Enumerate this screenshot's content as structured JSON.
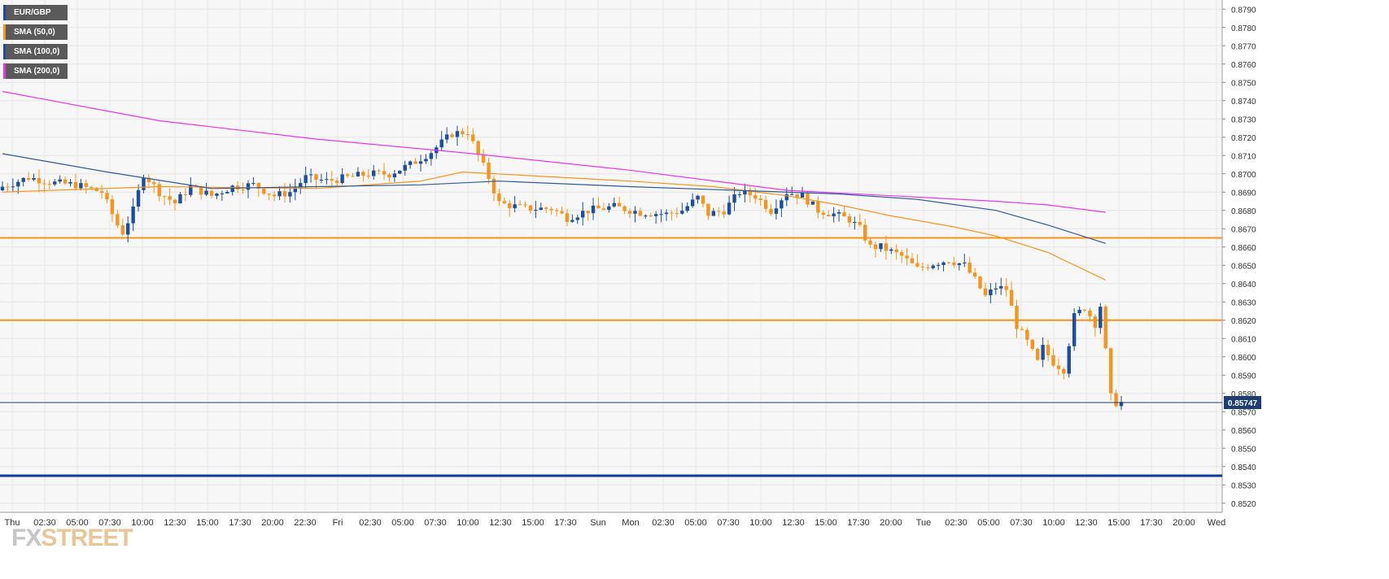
{
  "symbol": "EUR/GBP",
  "logo": {
    "part1": "FX",
    "part2": "STREET"
  },
  "legend": [
    {
      "label": "EUR/GBP",
      "color": "#1e4aa0"
    },
    {
      "label": "SMA (50,0)",
      "color": "#f7941d"
    },
    {
      "label": "SMA (100,0)",
      "color": "#1e4aa0"
    },
    {
      "label": "SMA (200,0)",
      "color": "#e040e0"
    }
  ],
  "colors": {
    "up": "#1a4fa0",
    "down": "#f7941d",
    "hline": "#f7941d",
    "support": "#0a3aa0",
    "sma50": "#f7941d",
    "sma100": "#2f5a9a",
    "sma200": "#e838e8",
    "grid": "#e6e6e6",
    "axis_text": "#333333"
  },
  "chart_data": {
    "type": "candlestick",
    "ylim": [
      0.8515,
      0.8795
    ],
    "y_ticks": [
      "0.8790",
      "0.8780",
      "0.8770",
      "0.8760",
      "0.8750",
      "0.8740",
      "0.8730",
      "0.8720",
      "0.8710",
      "0.8700",
      "0.8690",
      "0.8680",
      "0.8670",
      "0.8660",
      "0.8650",
      "0.8640",
      "0.8630",
      "0.8620",
      "0.8610",
      "0.8600",
      "0.8590",
      "0.8580",
      "0.8570",
      "0.8560",
      "0.8550",
      "0.8540",
      "0.8530",
      "0.8520"
    ],
    "x_ticks": [
      "Thu",
      "02:30",
      "05:00",
      "07:30",
      "10:00",
      "12:30",
      "15:00",
      "17:30",
      "20:00",
      "22:30",
      "Fri",
      "02:30",
      "05:00",
      "07:30",
      "10:00",
      "12:30",
      "15:00",
      "17:30",
      "Sun",
      "Mon",
      "02:30",
      "05:00",
      "07:30",
      "10:00",
      "12:30",
      "15:00",
      "17:30",
      "20:00",
      "Tue",
      "02:30",
      "05:00",
      "07:30",
      "10:00",
      "12:30",
      "15:00",
      "17:30",
      "20:00",
      "Wed"
    ],
    "horizontal_levels": [
      0.8665,
      0.862,
      0.8535
    ],
    "current_price": 0.8575,
    "current_price_label": "0.85747",
    "anchors": [
      [
        0,
        0.8693
      ],
      [
        5,
        0.8698
      ],
      [
        10,
        0.8695
      ],
      [
        14,
        0.8694
      ],
      [
        19,
        0.869
      ],
      [
        22,
        0.8672
      ],
      [
        23,
        0.8668
      ],
      [
        25,
        0.868
      ],
      [
        27,
        0.87
      ],
      [
        30,
        0.869
      ],
      [
        33,
        0.8684
      ],
      [
        36,
        0.8693
      ],
      [
        40,
        0.8688
      ],
      [
        44,
        0.8693
      ],
      [
        48,
        0.8694
      ],
      [
        52,
        0.8688
      ],
      [
        55,
        0.869
      ],
      [
        58,
        0.8698
      ],
      [
        62,
        0.8696
      ],
      [
        66,
        0.8698
      ],
      [
        70,
        0.87
      ],
      [
        74,
        0.87
      ],
      [
        78,
        0.8705
      ],
      [
        82,
        0.8712
      ],
      [
        86,
        0.8722
      ],
      [
        89,
        0.8723
      ],
      [
        91,
        0.871
      ],
      [
        93,
        0.8698
      ],
      [
        95,
        0.8684
      ],
      [
        100,
        0.8681
      ],
      [
        105,
        0.8681
      ],
      [
        108,
        0.8676
      ],
      [
        112,
        0.868
      ],
      [
        117,
        0.8682
      ],
      [
        122,
        0.8679
      ],
      [
        127,
        0.8678
      ],
      [
        130,
        0.868
      ],
      [
        133,
        0.8687
      ],
      [
        135,
        0.8678
      ],
      [
        138,
        0.868
      ],
      [
        141,
        0.869
      ],
      [
        144,
        0.8688
      ],
      [
        147,
        0.868
      ],
      [
        150,
        0.869
      ],
      [
        153,
        0.8688
      ],
      [
        156,
        0.868
      ],
      [
        159,
        0.8678
      ],
      [
        162,
        0.8675
      ],
      [
        164,
        0.867
      ],
      [
        166,
        0.866
      ],
      [
        168,
        0.866
      ],
      [
        172,
        0.8655
      ],
      [
        175,
        0.8648
      ],
      [
        178,
        0.8651
      ],
      [
        181,
        0.8653
      ],
      [
        184,
        0.865
      ],
      [
        186,
        0.8642
      ],
      [
        188,
        0.8633
      ],
      [
        190,
        0.8638
      ],
      [
        192,
        0.8637
      ],
      [
        194,
        0.8617
      ],
      [
        196,
        0.8608
      ],
      [
        198,
        0.8597
      ],
      [
        199,
        0.8605
      ],
      [
        201,
        0.8597
      ],
      [
        203,
        0.8593
      ],
      [
        205,
        0.8622
      ],
      [
        207,
        0.8627
      ],
      [
        209,
        0.8618
      ],
      [
        210,
        0.8628
      ],
      [
        212,
        0.8578
      ],
      [
        213,
        0.8575
      ],
      [
        214,
        0.8575
      ]
    ],
    "series": [
      {
        "name": "SMA (50,0)",
        "points": [
          [
            0,
            0.869
          ],
          [
            30,
            0.8693
          ],
          [
            60,
            0.8692
          ],
          [
            80,
            0.8696
          ],
          [
            88,
            0.8701
          ],
          [
            120,
            0.8696
          ],
          [
            136,
            0.8693
          ],
          [
            150,
            0.8688
          ],
          [
            160,
            0.8683
          ],
          [
            170,
            0.8677
          ],
          [
            182,
            0.8671
          ],
          [
            190,
            0.8666
          ],
          [
            200,
            0.8657
          ],
          [
            211,
            0.8642
          ]
        ]
      },
      {
        "name": "SMA (100,0)",
        "points": [
          [
            0,
            0.8711
          ],
          [
            20,
            0.8701
          ],
          [
            40,
            0.8692
          ],
          [
            60,
            0.8693
          ],
          [
            80,
            0.8694
          ],
          [
            95,
            0.8696
          ],
          [
            120,
            0.8693
          ],
          [
            140,
            0.8691
          ],
          [
            160,
            0.8689
          ],
          [
            175,
            0.8686
          ],
          [
            190,
            0.868
          ],
          [
            200,
            0.8672
          ],
          [
            211,
            0.8662
          ]
        ]
      },
      {
        "name": "SMA (200,0)",
        "points": [
          [
            0,
            0.8745
          ],
          [
            30,
            0.8729
          ],
          [
            60,
            0.8719
          ],
          [
            90,
            0.8711
          ],
          [
            120,
            0.8702
          ],
          [
            150,
            0.8691
          ],
          [
            170,
            0.8688
          ],
          [
            190,
            0.8685
          ],
          [
            200,
            0.8683
          ],
          [
            211,
            0.8679
          ]
        ]
      }
    ]
  }
}
